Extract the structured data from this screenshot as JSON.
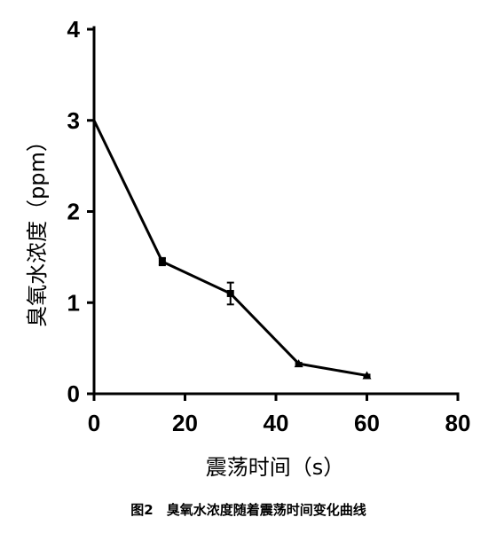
{
  "chart_data": {
    "type": "line",
    "xlabel": "震荡时间（s）",
    "ylabel": "臭氧水浓度（ppm）",
    "caption": "图2　臭氧水浓度随着震荡时间变化曲线",
    "xlim": [
      0,
      80
    ],
    "ylim": [
      0,
      4
    ],
    "x_ticks": [
      0,
      20,
      40,
      60,
      80
    ],
    "y_ticks": [
      0,
      1,
      2,
      3,
      4
    ],
    "grid": false,
    "legend": "none",
    "series": [
      {
        "x": [
          0,
          15,
          30,
          45,
          60
        ],
        "values": [
          3.0,
          1.45,
          1.1,
          0.33,
          0.2
        ],
        "errors": [
          0,
          0.04,
          0.12,
          0.01,
          0.01
        ],
        "markers": [
          "none",
          "square",
          "square",
          "triangle",
          "triangle"
        ],
        "color": "#000000"
      }
    ]
  }
}
